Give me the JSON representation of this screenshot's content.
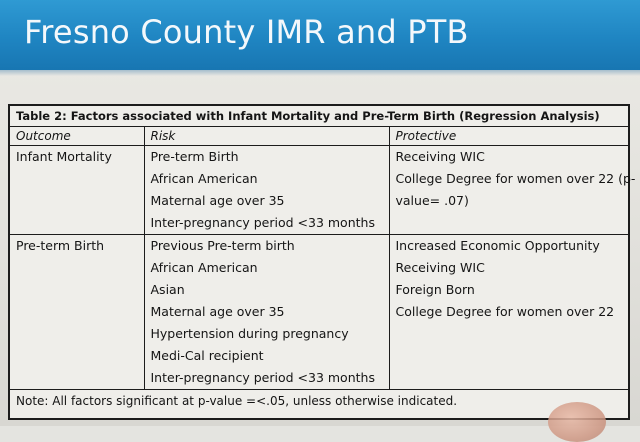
{
  "slide": {
    "title": "Fresno County IMR and PTB"
  },
  "table": {
    "caption": "Table 2: Factors associated with Infant Mortality and Pre-Term Birth (Regression Analysis)",
    "headers": {
      "outcome": "Outcome",
      "risk": "Risk",
      "protective": "Protective"
    },
    "rows": [
      {
        "outcome": "Infant Mortality",
        "risk": [
          "Pre-term Birth",
          "African American",
          "Maternal age over 35",
          "Inter-pregnancy period <33 months"
        ],
        "protective": [
          "Receiving WIC",
          "College Degree for women over 22 (p-",
          "value= .07)"
        ]
      },
      {
        "outcome": "Pre-term Birth",
        "risk": [
          "Previous Pre-term birth",
          "African American",
          "Asian",
          "Maternal age over 35",
          "Hypertension during pregnancy",
          "Medi-Cal recipient",
          "Inter-pregnancy period <33 months"
        ],
        "protective": [
          "Increased Economic Opportunity",
          "Receiving WIC",
          "Foreign Born",
          "College Degree for women over 22"
        ]
      }
    ],
    "note": "Note: All factors significant at p-value =<.05, unless otherwise indicated."
  }
}
